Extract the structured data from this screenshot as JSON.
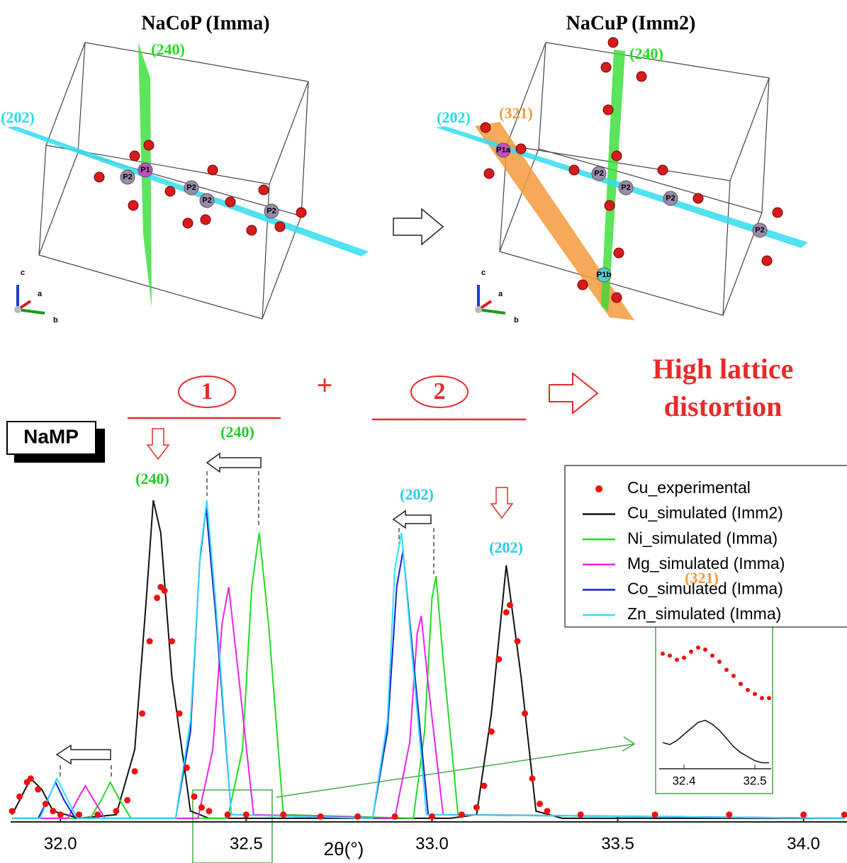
{
  "structures": [
    {
      "title": "NaCoP (Imma)",
      "planes": [
        {
          "label": "(240)",
          "color": "#22dd22"
        },
        {
          "label": "(202)",
          "color": "#22ddee"
        }
      ],
      "atoms": [
        "P1",
        "P2",
        "P2",
        "P2",
        "P2"
      ],
      "axes": [
        "c",
        "a",
        "b"
      ]
    },
    {
      "title": "NaCuP (Imm2)",
      "planes": [
        {
          "label": "(240)",
          "color": "#22dd22"
        },
        {
          "label": "(202)",
          "color": "#22ddee"
        },
        {
          "label": "(321)",
          "color": "#f39a3c"
        }
      ],
      "atoms": [
        "P1a",
        "P2",
        "P2",
        "P2",
        "P2",
        "P1b"
      ],
      "axes": [
        "c",
        "a",
        "b"
      ]
    }
  ],
  "scheme": {
    "step1": "1",
    "plus": "+",
    "step2": "2",
    "result": [
      "High lattice",
      "distortion"
    ]
  },
  "chart_data": {
    "type": "line",
    "label": "NaMP",
    "x_label": "2θ(°)",
    "xlim": [
      31.866,
      34.117
    ],
    "xticks": [
      {
        "value": 32,
        "label": "32.0"
      },
      32.5,
      {
        "value": 33,
        "label": "33.0"
      },
      33.5,
      {
        "value": 34,
        "label": "34.0"
      }
    ],
    "ylim": [
      0,
      100
    ],
    "annotations": [
      {
        "text": "(240)",
        "color": "#22cc22"
      },
      {
        "text": "(240)",
        "color": "#22cc22"
      },
      {
        "text": "(202)",
        "color": "#22ccee"
      },
      {
        "text": "(202)",
        "color": "#22ccee"
      }
    ],
    "series": [
      {
        "name": "Cu_experimental",
        "color": "#ee1111",
        "marker": true,
        "x": [
          31.87,
          31.89,
          31.91,
          31.92,
          31.94,
          31.96,
          31.98,
          32.0,
          32.05,
          32.1,
          32.15,
          32.18,
          32.2,
          32.22,
          32.24,
          32.26,
          32.27,
          32.28,
          32.3,
          32.32,
          32.34,
          32.36,
          32.38,
          32.4,
          32.45,
          32.5,
          32.6,
          32.7,
          32.8,
          32.9,
          33.0,
          33.08,
          33.12,
          33.14,
          33.16,
          33.18,
          33.2,
          33.21,
          33.23,
          33.25,
          33.27,
          33.29,
          33.31,
          33.4,
          33.6,
          33.8,
          34.0,
          34.11
        ],
        "values": [
          3,
          7,
          11,
          12,
          9,
          5,
          3,
          2,
          2,
          2,
          3,
          6,
          14,
          30,
          50,
          62,
          65,
          64,
          50,
          30,
          15,
          7,
          4,
          3,
          2,
          2,
          2,
          1.5,
          1.5,
          1.5,
          1.5,
          2,
          4,
          10,
          25,
          45,
          58,
          60,
          50,
          30,
          12,
          5,
          3,
          2,
          2,
          2,
          2,
          2
        ]
      },
      {
        "name": "Cu_simulated (Imm2)",
        "color": "#111111",
        "x": [
          31.87,
          31.89,
          31.92,
          31.95,
          31.98,
          32.05,
          32.15,
          32.2,
          32.23,
          32.25,
          32.27,
          32.3,
          32.35,
          32.4,
          33.05,
          33.12,
          33.16,
          33.2,
          33.24,
          33.28,
          33.35,
          34.11
        ],
        "values": [
          2,
          6,
          12,
          9,
          3,
          1,
          2,
          20,
          60,
          89,
          80,
          40,
          3,
          1,
          1,
          2,
          30,
          71,
          40,
          3,
          1,
          1
        ]
      },
      {
        "name": "Ni_simulated (Imma)",
        "color": "#22dd22",
        "x": [
          31.87,
          32.08,
          32.11,
          32.134,
          32.16,
          32.19,
          32.45,
          32.49,
          32.515,
          32.535,
          32.56,
          32.6,
          32.95,
          32.98,
          33.0,
          33.011,
          33.03,
          33.07,
          34.11
        ],
        "values": [
          1,
          1,
          6,
          11,
          6,
          1,
          1,
          20,
          65,
          80,
          55,
          2,
          1,
          25,
          62,
          68,
          45,
          2,
          1
        ]
      },
      {
        "name": "Mg_simulated (Imma)",
        "color": "#ee22ee",
        "x": [
          31.87,
          32.02,
          32.045,
          32.067,
          32.09,
          32.12,
          32.37,
          32.41,
          32.435,
          32.453,
          32.48,
          32.52,
          32.9,
          32.94,
          32.96,
          32.971,
          32.99,
          33.03,
          34.11
        ],
        "values": [
          1,
          1,
          6,
          10,
          6,
          1,
          1,
          20,
          55,
          65,
          40,
          2,
          1,
          22,
          52,
          57,
          38,
          2,
          1
        ]
      },
      {
        "name": "Co_simulated (Imma)",
        "color": "#1122cc",
        "x": [
          31.87,
          31.94,
          31.965,
          31.987,
          32.01,
          32.04,
          32.31,
          32.35,
          32.375,
          32.392,
          32.42,
          32.46,
          32.84,
          32.88,
          32.905,
          32.922,
          32.95,
          32.99,
          34.11
        ],
        "values": [
          1,
          1,
          6,
          11,
          6,
          1,
          1,
          25,
          72,
          87,
          55,
          2,
          1,
          25,
          65,
          75,
          45,
          2,
          1
        ]
      },
      {
        "name": "Zn_simulated (Imma)",
        "color": "#33ddff",
        "x": [
          31.87,
          31.945,
          31.97,
          31.99,
          32.015,
          32.045,
          32.31,
          32.35,
          32.377,
          32.394,
          32.42,
          32.46,
          32.84,
          32.88,
          32.9,
          32.918,
          32.945,
          32.985,
          34.11
        ],
        "values": [
          1,
          1,
          7,
          12,
          7,
          1,
          1,
          28,
          75,
          89,
          58,
          2,
          1,
          28,
          70,
          80,
          48,
          2,
          1
        ]
      }
    ],
    "inset": {
      "label": "(321)",
      "label_color": "#f39a3c",
      "xlim": [
        32.365,
        32.523
      ],
      "ylim": [
        0,
        10
      ],
      "xticks": [
        32.4,
        32.5
      ],
      "x": [
        32.37,
        32.38,
        32.39,
        32.4,
        32.41,
        32.42,
        32.43,
        32.44,
        32.45,
        32.46,
        32.47,
        32.48,
        32.49,
        32.5,
        32.51,
        32.52
      ],
      "experimental": [
        5.7,
        5.6,
        5.4,
        5.5,
        5.8,
        6.0,
        5.9,
        5.6,
        5.3,
        4.9,
        4.6,
        4.2,
        3.9,
        3.7,
        3.5,
        3.5
      ],
      "simulated": [
        1.3,
        1.2,
        1.4,
        1.7,
        2.0,
        2.3,
        2.4,
        2.2,
        1.9,
        1.5,
        1.1,
        0.8,
        0.6,
        0.4,
        0.3,
        0.3
      ]
    }
  }
}
